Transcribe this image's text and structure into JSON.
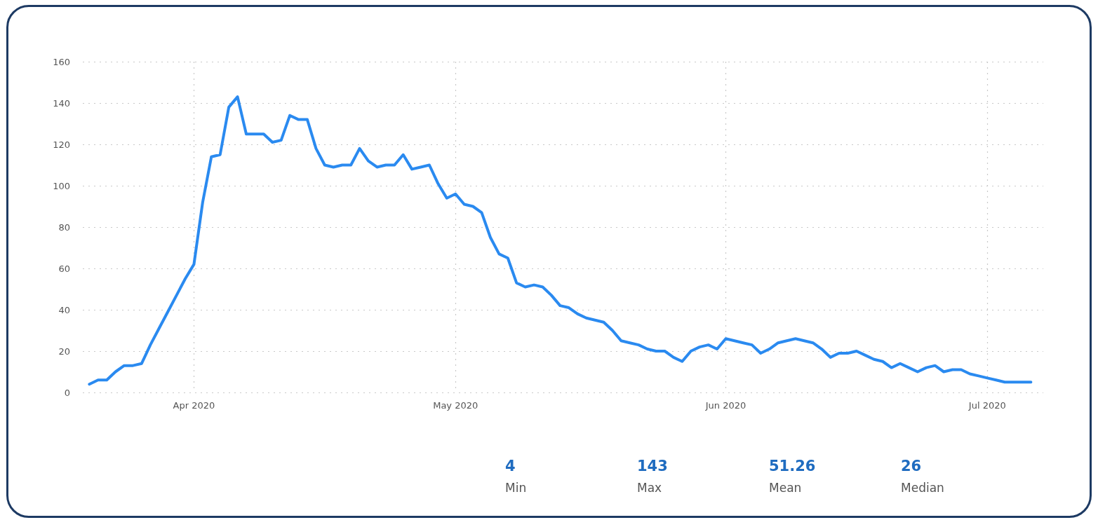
{
  "chart_data": {
    "type": "line",
    "x": [
      "2020-03-20",
      "2020-03-21",
      "2020-03-22",
      "2020-03-23",
      "2020-03-24",
      "2020-03-25",
      "2020-03-26",
      "2020-03-27",
      "2020-03-28",
      "2020-03-29",
      "2020-03-30",
      "2020-03-31",
      "2020-04-01",
      "2020-04-02",
      "2020-04-03",
      "2020-04-04",
      "2020-04-05",
      "2020-04-06",
      "2020-04-07",
      "2020-04-08",
      "2020-04-09",
      "2020-04-10",
      "2020-04-11",
      "2020-04-12",
      "2020-04-13",
      "2020-04-14",
      "2020-04-15",
      "2020-04-16",
      "2020-04-17",
      "2020-04-18",
      "2020-04-19",
      "2020-04-20",
      "2020-04-21",
      "2020-04-22",
      "2020-04-23",
      "2020-04-24",
      "2020-04-25",
      "2020-04-26",
      "2020-04-27",
      "2020-04-28",
      "2020-04-29",
      "2020-04-30",
      "2020-05-01",
      "2020-05-02",
      "2020-05-03",
      "2020-05-04",
      "2020-05-05",
      "2020-05-06",
      "2020-05-07",
      "2020-05-08",
      "2020-05-09",
      "2020-05-10",
      "2020-05-11",
      "2020-05-12",
      "2020-05-13",
      "2020-05-14",
      "2020-05-15",
      "2020-05-16",
      "2020-05-17",
      "2020-05-18",
      "2020-05-19",
      "2020-05-20",
      "2020-05-21",
      "2020-05-22",
      "2020-05-23",
      "2020-05-24",
      "2020-05-25",
      "2020-05-26",
      "2020-05-27",
      "2020-05-28",
      "2020-05-29",
      "2020-05-30",
      "2020-05-31",
      "2020-06-01",
      "2020-06-02",
      "2020-06-03",
      "2020-06-04",
      "2020-06-05",
      "2020-06-06",
      "2020-06-07",
      "2020-06-08",
      "2020-06-09",
      "2020-06-10",
      "2020-06-11",
      "2020-06-12",
      "2020-06-13",
      "2020-06-14",
      "2020-06-15",
      "2020-06-16",
      "2020-06-17",
      "2020-06-18",
      "2020-06-19",
      "2020-06-20",
      "2020-06-21",
      "2020-06-22",
      "2020-06-23",
      "2020-06-24",
      "2020-06-25",
      "2020-06-26",
      "2020-06-27",
      "2020-06-28",
      "2020-06-29",
      "2020-06-30",
      "2020-07-01",
      "2020-07-02",
      "2020-07-03",
      "2020-07-04",
      "2020-07-05",
      "2020-07-06"
    ],
    "series": [
      {
        "color": "#2a8af0",
        "values": [
          4,
          6,
          6,
          10,
          13,
          13,
          14,
          23,
          31,
          39,
          47,
          55,
          62,
          92,
          114,
          115,
          138,
          143,
          125,
          125,
          125,
          121,
          122,
          134,
          132,
          132,
          118,
          110,
          109,
          110,
          110,
          118,
          112,
          109,
          110,
          110,
          115,
          108,
          109,
          110,
          101,
          94,
          96,
          91,
          90,
          87,
          75,
          67,
          65,
          53,
          51,
          52,
          51,
          47,
          42,
          41,
          38,
          36,
          35,
          34,
          30,
          25,
          24,
          23,
          21,
          20,
          20,
          17,
          15,
          20,
          22,
          23,
          21,
          26,
          25,
          24,
          23,
          19,
          21,
          24,
          25,
          26,
          25,
          24,
          21,
          17,
          19,
          19,
          20,
          18,
          16,
          15,
          12,
          14,
          12,
          10,
          12,
          13,
          10,
          11,
          11,
          9,
          8,
          7,
          6,
          5,
          5,
          5,
          5
        ]
      }
    ],
    "xlim": [
      "2020-03-19T06:00",
      "2020-07-07T10:00"
    ],
    "xticks": [
      {
        "value": "2020-04-01",
        "label": "Apr 2020"
      },
      {
        "value": "2020-05-01",
        "label": "May 2020"
      },
      {
        "value": "2020-06-01",
        "label": "Jun 2020"
      },
      {
        "value": "2020-07-01",
        "label": "Jul 2020"
      }
    ],
    "ylim": [
      0,
      160
    ],
    "yticks": [
      0,
      20,
      40,
      60,
      80,
      100,
      120,
      140,
      160
    ],
    "grid": true,
    "marker": "none",
    "line_style": "solid",
    "annotations": [
      "4",
      "Min",
      "143",
      "Max",
      "51.26",
      "Mean",
      "26",
      "Median"
    ]
  }
}
